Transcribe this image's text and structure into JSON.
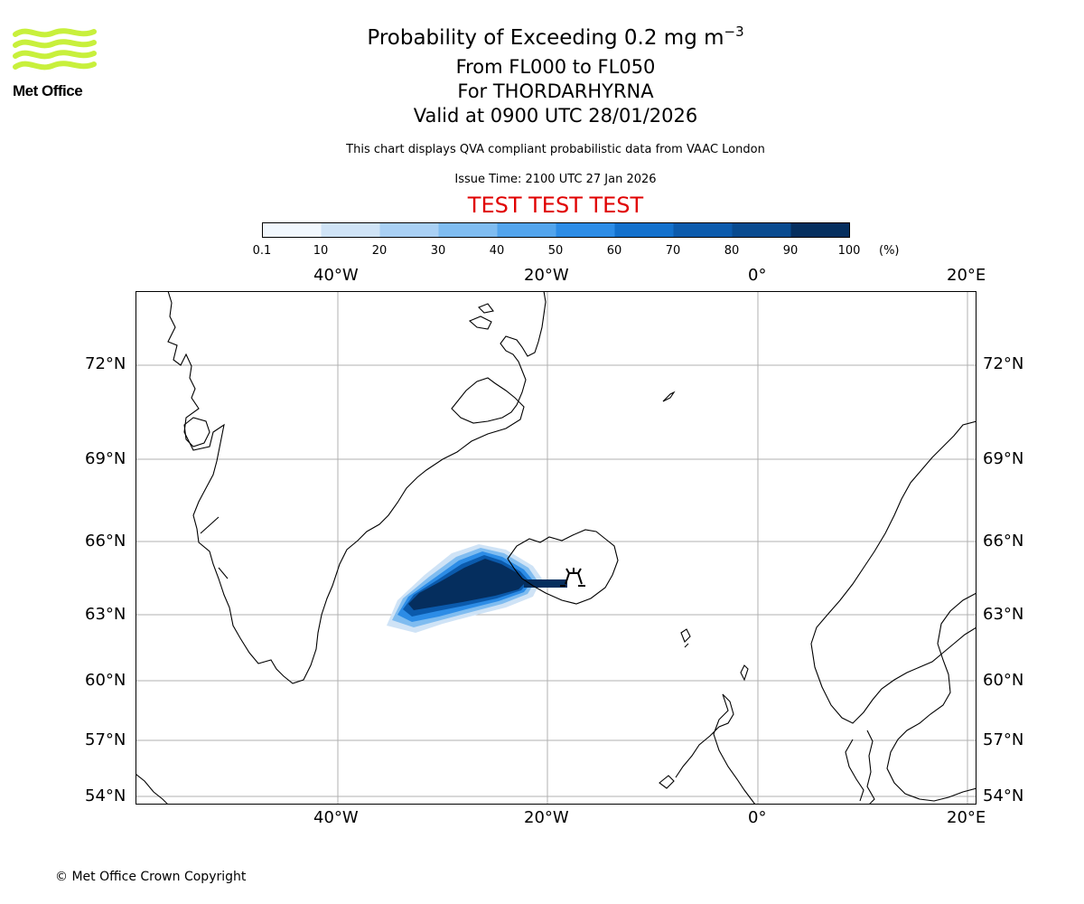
{
  "header": {
    "title_main": "Probability of Exceeding 0.2 mg m",
    "title_exp": "−3",
    "level_range": "From FL000 to FL050",
    "volcano": "For THORDARHYRNA",
    "valid_time": "Valid at 0900 UTC 28/01/2026",
    "description": "This chart displays QVA compliant probabilistic data from VAAC London",
    "issue_time": "Issue Time: 2100 UTC 27 Jan 2026",
    "test_banner": "TEST TEST TEST"
  },
  "logo": {
    "text": "Met Office",
    "color": "#c8f03c"
  },
  "colorbar": {
    "ticks": [
      "0.1",
      "10",
      "20",
      "30",
      "40",
      "50",
      "60",
      "70",
      "80",
      "90",
      "100"
    ],
    "unit": "(%)",
    "colors": [
      "#f1f7fd",
      "#cfe3f6",
      "#a9d0f4",
      "#7fbcf0",
      "#52a4ec",
      "#2c8ce6",
      "#1270cc",
      "#0b5aac",
      "#084a8f",
      "#052e5e"
    ]
  },
  "map": {
    "lon_labels": [
      "40°W",
      "20°W",
      "0°",
      "20°E"
    ],
    "lat_labels": [
      "72°N",
      "69°N",
      "66°N",
      "63°N",
      "60°N",
      "57°N",
      "54°N"
    ],
    "volcano_icon": "volcano-icon"
  },
  "footer": {
    "copyright": "© Met Office Crown Copyright"
  }
}
